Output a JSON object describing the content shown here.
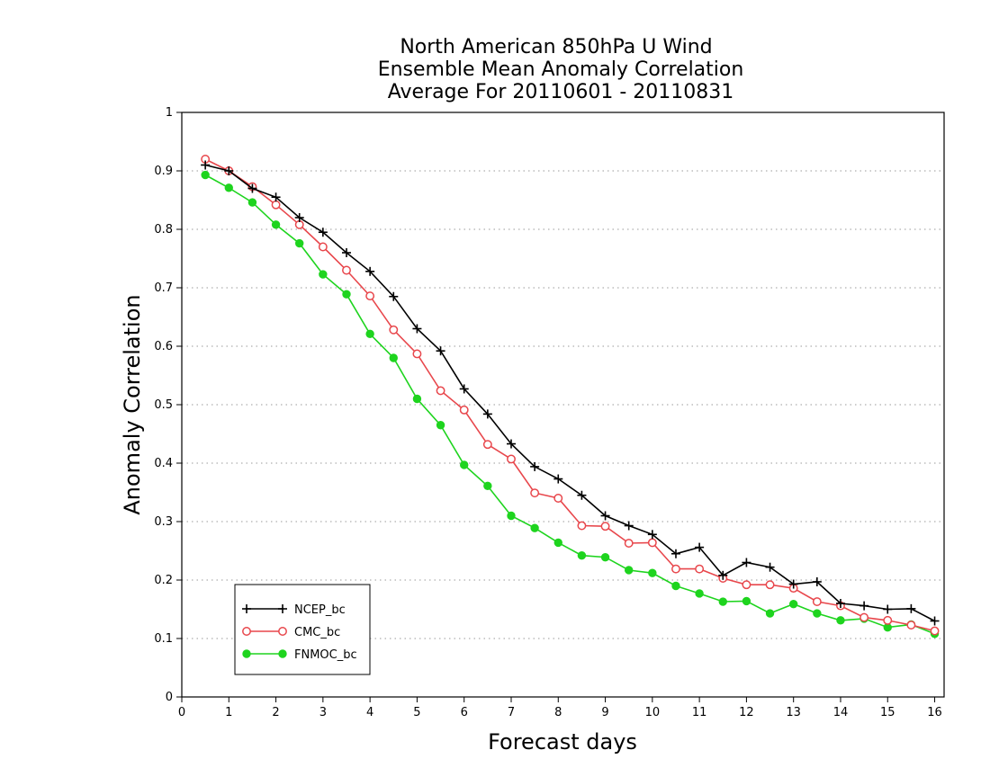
{
  "chart_data": {
    "type": "line",
    "title": [
      "North American 850hPa U Wind",
      "Ensemble Mean Anomaly Correlation",
      "Average For 20110601 - 20110831"
    ],
    "xlabel": "Forecast days",
    "ylabel": "Anomaly Correlation",
    "xlim": [
      0,
      16.2
    ],
    "ylim": [
      0,
      1
    ],
    "xticks": [
      0,
      1,
      2,
      3,
      4,
      5,
      6,
      7,
      8,
      9,
      10,
      11,
      12,
      13,
      14,
      15,
      16
    ],
    "xtick_labels": [
      "0",
      "1",
      "2",
      "3",
      "4",
      "5",
      "6",
      "7",
      "8",
      "9",
      "10",
      "11",
      "12",
      "13",
      "14",
      "15",
      "16"
    ],
    "yticks": [
      0,
      0.1,
      0.2,
      0.3,
      0.4,
      0.5,
      0.6,
      0.7,
      0.8,
      0.9,
      1
    ],
    "ytick_labels": [
      "0",
      "0.1",
      "0.2",
      "0.3",
      "0.4",
      "0.5",
      "0.6",
      "0.7",
      "0.8",
      "0.9",
      "1"
    ],
    "grid": "horizontal dotted",
    "legend_position": "bottom-left",
    "x": [
      0.5,
      1,
      1.5,
      2,
      2.5,
      3,
      3.5,
      4,
      4.5,
      5,
      5.5,
      6,
      6.5,
      7,
      7.5,
      8,
      8.5,
      9,
      9.5,
      10,
      10.5,
      11,
      11.5,
      12,
      12.5,
      13,
      13.5,
      14,
      14.5,
      15,
      15.5,
      16
    ],
    "series": [
      {
        "name": "NCEP_bc",
        "color": "#000000",
        "marker": "plus",
        "values": [
          0.91,
          0.9,
          0.87,
          0.855,
          0.82,
          0.795,
          0.76,
          0.728,
          0.685,
          0.63,
          0.592,
          0.527,
          0.484,
          0.433,
          0.394,
          0.373,
          0.345,
          0.31,
          0.293,
          0.278,
          0.245,
          0.256,
          0.208,
          0.23,
          0.222,
          0.193,
          0.197,
          0.16,
          0.156,
          0.15,
          0.151,
          0.13
        ]
      },
      {
        "name": "CMC_bc",
        "color": "#e8474c",
        "marker": "open-circle",
        "values": [
          0.92,
          0.9,
          0.873,
          0.842,
          0.808,
          0.77,
          0.73,
          0.686,
          0.628,
          0.587,
          0.524,
          0.491,
          0.432,
          0.407,
          0.349,
          0.34,
          0.293,
          0.292,
          0.263,
          0.264,
          0.219,
          0.219,
          0.203,
          0.192,
          0.192,
          0.186,
          0.163,
          0.156,
          0.136,
          0.131,
          0.123,
          0.113
        ]
      },
      {
        "name": "FNMOC_bc",
        "color": "#1ed41e",
        "marker": "filled-circle",
        "values": [
          0.893,
          0.871,
          0.846,
          0.808,
          0.776,
          0.723,
          0.689,
          0.621,
          0.58,
          0.51,
          0.465,
          0.397,
          0.361,
          0.31,
          0.289,
          0.264,
          0.242,
          0.239,
          0.217,
          0.212,
          0.19,
          0.177,
          0.163,
          0.164,
          0.143,
          0.159,
          0.143,
          0.131,
          0.134,
          0.119,
          0.124,
          0.108
        ]
      }
    ]
  }
}
